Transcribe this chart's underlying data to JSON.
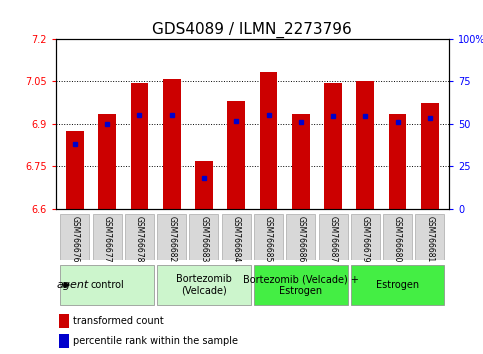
{
  "title": "GDS4089 / ILMN_2273796",
  "samples": [
    "GSM766676",
    "GSM766677",
    "GSM766678",
    "GSM766682",
    "GSM766683",
    "GSM766684",
    "GSM766685",
    "GSM766686",
    "GSM766687",
    "GSM766679",
    "GSM766680",
    "GSM766681"
  ],
  "bar_tops": [
    6.875,
    6.935,
    7.045,
    7.057,
    6.77,
    6.98,
    7.082,
    6.935,
    7.045,
    7.05,
    6.935,
    6.975
  ],
  "bar_bottom": 6.6,
  "blue_values": [
    6.83,
    6.9,
    6.93,
    6.93,
    6.71,
    6.91,
    6.93,
    6.908,
    6.928,
    6.928,
    6.908,
    6.92
  ],
  "ylim_left": [
    6.6,
    7.2
  ],
  "ylim_right": [
    0,
    100
  ],
  "yticks_left": [
    6.6,
    6.75,
    6.9,
    7.05,
    7.2
  ],
  "yticks_right": [
    0,
    25,
    50,
    75,
    100
  ],
  "ytick_labels_left": [
    "6.6",
    "6.75",
    "6.9",
    "7.05",
    "7.2"
  ],
  "ytick_labels_right": [
    "0",
    "25",
    "50",
    "75",
    "100%"
  ],
  "grid_lines": [
    6.75,
    6.9,
    7.05
  ],
  "bar_color": "#cc0000",
  "blue_color": "#0000cc",
  "group_data": [
    {
      "label": "control",
      "start": 0,
      "end": 2,
      "color": "#ccf5cc"
    },
    {
      "label": "Bortezomib\n(Velcade)",
      "start": 3,
      "end": 5,
      "color": "#ccf5cc"
    },
    {
      "label": "Bortezomib (Velcade) +\nEstrogen",
      "start": 6,
      "end": 8,
      "color": "#44ee44"
    },
    {
      "label": "Estrogen",
      "start": 9,
      "end": 11,
      "color": "#44ee44"
    }
  ],
  "agent_label": "agent",
  "bar_width": 0.55,
  "tick_fontsize": 7,
  "title_fontsize": 11,
  "sample_fontsize": 5.5,
  "group_fontsize": 7,
  "legend_fontsize": 7
}
